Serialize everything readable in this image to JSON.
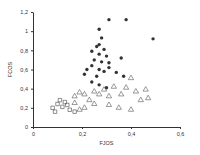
{
  "chart_data": {
    "type": "scatter",
    "x_label": "FJOS",
    "y_label": "FCOS",
    "xlim": [
      0,
      0.6
    ],
    "ylim": [
      0,
      1.2
    ],
    "xticks": [
      0,
      {
        "value": 0.2,
        "label": "0,2"
      },
      {
        "value": 0.4,
        "label": "0,4"
      },
      {
        "value": 0.6,
        "label": "0,6"
      }
    ],
    "yticks": [
      0,
      {
        "value": 0.2,
        "label": "0,2"
      },
      {
        "value": 0.4,
        "label": "0,4"
      },
      {
        "value": 0.6,
        "label": "0,6"
      },
      {
        "value": 0.8,
        "label": "0,8"
      },
      {
        "value": 1,
        "label": "1"
      },
      {
        "value": 1.2,
        "label": "1,2"
      }
    ],
    "series": [
      {
        "marker": "circle",
        "color": "#333333",
        "x": [
          0.31,
          0.38,
          0.49,
          0.27,
          0.28,
          0.27,
          0.26,
          0.29,
          0.24,
          0.27,
          0.3,
          0.25,
          0.28,
          0.31,
          0.24,
          0.27,
          0.29,
          0.22,
          0.21,
          0.26,
          0.31,
          0.34,
          0.24,
          0.27,
          0.36,
          0.37,
          0.3
        ],
        "values": [
          1.12,
          1.12,
          0.92,
          1.02,
          0.93,
          0.86,
          0.84,
          0.81,
          0.79,
          0.76,
          0.74,
          0.7,
          0.68,
          0.67,
          0.64,
          0.6,
          0.58,
          0.6,
          0.55,
          0.53,
          0.62,
          0.57,
          0.47,
          0.44,
          0.72,
          0.53,
          0.41
        ]
      },
      {
        "marker": "triangle",
        "color": "#555555",
        "x": [
          0.17,
          0.19,
          0.21,
          0.23,
          0.25,
          0.27,
          0.29,
          0.31,
          0.33,
          0.36,
          0.38,
          0.4,
          0.42,
          0.44,
          0.47,
          0.46,
          0.31,
          0.35,
          0.25,
          0.21,
          0.19,
          0.17,
          0.4
        ],
        "values": [
          0.32,
          0.36,
          0.34,
          0.28,
          0.37,
          0.34,
          0.39,
          0.32,
          0.42,
          0.34,
          0.41,
          0.51,
          0.37,
          0.28,
          0.3,
          0.39,
          0.23,
          0.2,
          0.24,
          0.2,
          0.18,
          0.25,
          0.18
        ]
      },
      {
        "marker": "square",
        "color": "#444444",
        "x": [
          0.08,
          0.1,
          0.11,
          0.13,
          0.12,
          0.14,
          0.15,
          0.09,
          0.17
        ],
        "values": [
          0.2,
          0.24,
          0.28,
          0.26,
          0.21,
          0.23,
          0.18,
          0.16,
          0.16
        ]
      }
    ]
  }
}
